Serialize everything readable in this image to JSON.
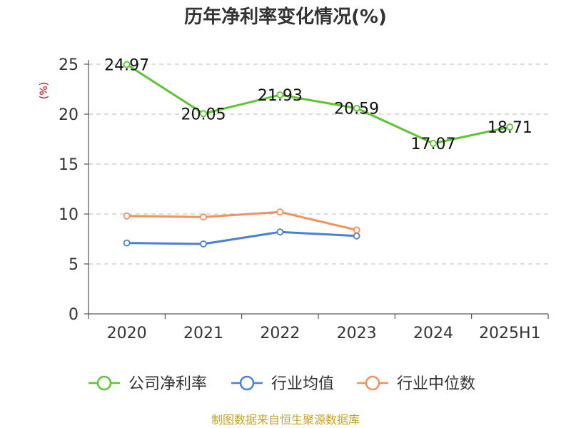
{
  "chart_data": {
    "type": "line",
    "title": "历年净利率变化情况(%)",
    "ylabel": "(%)",
    "categories": [
      "2020",
      "2021",
      "2022",
      "2023",
      "2024",
      "2025H1"
    ],
    "ylim": [
      0,
      25
    ],
    "yticks": [
      0,
      5,
      10,
      15,
      20,
      25
    ],
    "grid": true,
    "legend_position": "bottom",
    "series": [
      {
        "name": "公司净利率",
        "color": "#5cc530",
        "values": [
          24.97,
          20.05,
          21.93,
          20.59,
          17.07,
          18.71
        ],
        "labels": [
          "24.97",
          "20.05",
          "21.93",
          "20.59",
          "17.07",
          "18.71"
        ]
      },
      {
        "name": "行业均值",
        "color": "#4a7fd8",
        "values": [
          7.1,
          7.0,
          8.2,
          7.8,
          null,
          null
        ]
      },
      {
        "name": "行业中位数",
        "color": "#f4905c",
        "values": [
          9.8,
          9.7,
          10.2,
          8.4,
          null,
          null
        ]
      }
    ]
  },
  "colors": {
    "ylabel": "#cc0000",
    "footer": "#c9a227",
    "grid": "#bbbbbb",
    "axis": "#333333"
  },
  "footer": "制图数据来自恒生聚源数据库"
}
